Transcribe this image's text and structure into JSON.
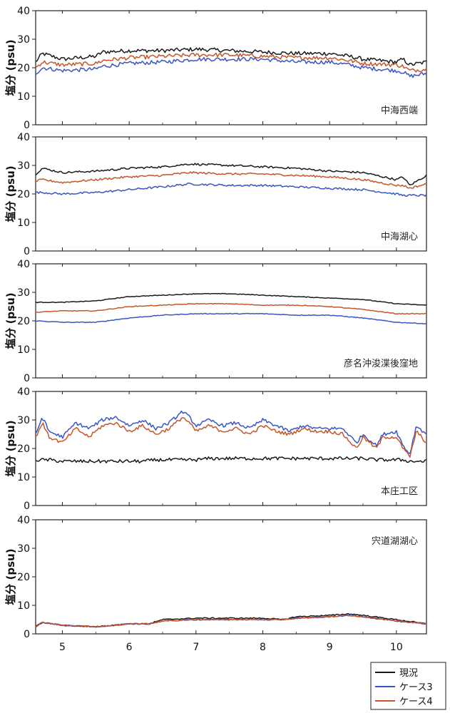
{
  "chart_data": {
    "type": "line",
    "x_ticks": [
      "5",
      "6",
      "7",
      "8",
      "9",
      "10"
    ],
    "xlim": [
      4.6,
      10.45
    ],
    "ylabel": "塩分 (psu)",
    "legend": {
      "placement": "bottom-right",
      "entries": [
        {
          "name": "現況",
          "color": "#1a1a1a"
        },
        {
          "name": "ケース3",
          "color": "#3a55c4"
        },
        {
          "name": "ケース4",
          "color": "#c8552a"
        }
      ]
    },
    "panels": [
      {
        "label": "中海西端",
        "ylim": [
          0,
          40
        ],
        "yticks": [
          0,
          10,
          20,
          30,
          40
        ],
        "x": [
          4.6,
          4.7,
          5.0,
          5.5,
          5.6,
          6.0,
          6.5,
          7.0,
          7.5,
          8.0,
          8.5,
          9.0,
          9.3,
          9.5,
          10.0,
          10.1,
          10.2,
          10.45
        ],
        "series": [
          {
            "name": "現況",
            "values": [
              22,
              25,
              23,
              24,
              25.5,
              26,
              26,
              26.5,
              26,
              25.5,
              25,
              25,
              24,
              23,
              22,
              23,
              21,
              22
            ]
          },
          {
            "name": "ケース3",
            "values": [
              18,
              20,
              19,
              19.5,
              20.5,
              21.5,
              22,
              23,
              23,
              23,
              22,
              22,
              21,
              20,
              19,
              18.5,
              17,
              18
            ]
          },
          {
            "name": "ケース4",
            "values": [
              20,
              22,
              21,
              21.5,
              22.5,
              23.5,
              24,
              24.5,
              24.5,
              24,
              23.5,
              23.5,
              22.5,
              21.5,
              21,
              20.5,
              19,
              19.5
            ]
          }
        ]
      },
      {
        "label": "中海湖心",
        "ylim": [
          0,
          40
        ],
        "yticks": [
          0,
          10,
          20,
          30,
          40
        ],
        "x": [
          4.6,
          4.7,
          5.0,
          5.5,
          6.0,
          6.5,
          6.9,
          7.5,
          8.0,
          8.5,
          9.0,
          9.5,
          10.0,
          10.1,
          10.2,
          10.45
        ],
        "series": [
          {
            "name": "現況",
            "values": [
              27,
              29,
              27.5,
              28,
              29,
              29.5,
              30.5,
              30,
              29.5,
              29,
              28,
              27.5,
              25,
              26,
              23,
              26.5
            ]
          },
          {
            "name": "ケース3",
            "values": [
              20.5,
              20.5,
              20,
              20.5,
              21.5,
              22.5,
              23.5,
              23,
              23,
              22.5,
              22,
              21.5,
              20,
              19.5,
              19.5,
              19.5
            ]
          },
          {
            "name": "ケース4",
            "values": [
              24.5,
              25,
              24,
              25,
              26,
              26.5,
              27.5,
              27,
              27,
              26.5,
              26,
              25,
              23,
              23,
              22,
              23.5
            ]
          }
        ]
      },
      {
        "label": "彦名沖浚渫後窪地",
        "ylim": [
          0,
          40
        ],
        "yticks": [
          0,
          10,
          20,
          30,
          40
        ],
        "x": [
          4.6,
          5.0,
          5.5,
          6.0,
          6.5,
          7.0,
          7.5,
          8.0,
          8.5,
          9.0,
          9.5,
          10.0,
          10.45
        ],
        "series": [
          {
            "name": "現況",
            "values": [
              26.5,
              26.5,
              27,
              28.5,
              29,
              29.5,
              29.5,
              29,
              28.5,
              28,
              27.5,
              26,
              25.5
            ]
          },
          {
            "name": "ケース3",
            "values": [
              20,
              19.5,
              19.5,
              21,
              22,
              22.5,
              22.5,
              22.5,
              22,
              22,
              21,
              19.5,
              19
            ]
          },
          {
            "name": "ケース4",
            "values": [
              23,
              23.5,
              23.5,
              25,
              25.5,
              26,
              26,
              25.5,
              25.5,
              25,
              24,
              22.5,
              22.5
            ]
          }
        ]
      },
      {
        "label": "本庄工区",
        "ylim": [
          0,
          40
        ],
        "yticks": [
          0,
          10,
          20,
          30,
          40
        ],
        "x": [
          4.6,
          4.7,
          4.8,
          5.0,
          5.2,
          5.4,
          5.6,
          5.8,
          6.0,
          6.2,
          6.4,
          6.6,
          6.8,
          6.9,
          7.0,
          7.2,
          7.4,
          7.6,
          7.8,
          8.0,
          8.2,
          8.4,
          8.6,
          8.8,
          9.0,
          9.2,
          9.4,
          9.5,
          9.7,
          9.8,
          10.0,
          10.1,
          10.2,
          10.3,
          10.45
        ],
        "series": [
          {
            "name": "現況",
            "values": [
              16,
              16,
              16,
              15.5,
              15.5,
              15.5,
              15.5,
              15.5,
              15.5,
              15.5,
              16,
              16,
              16,
              16,
              16,
              16.5,
              16.5,
              16.5,
              16.5,
              16.5,
              16.5,
              16.5,
              16.5,
              16.5,
              16.5,
              16.5,
              16.5,
              16.5,
              16,
              16,
              16,
              16,
              15.5,
              15.5,
              15.5
            ]
          },
          {
            "name": "ケース3",
            "values": [
              25,
              31,
              26,
              24,
              29,
              27,
              30,
              31,
              28,
              30,
              27,
              29,
              33,
              31,
              28,
              30,
              28,
              29,
              27,
              30,
              28,
              26,
              28,
              27,
              27,
              27,
              22,
              25,
              21,
              25,
              26,
              21,
              18,
              28,
              25
            ]
          },
          {
            "name": "ケース4",
            "values": [
              24,
              29,
              24,
              22,
              27,
              24,
              28,
              29,
              26,
              28,
              25,
              27,
              31,
              29,
              26,
              28,
              26,
              27,
              25,
              28,
              26,
              25,
              27,
              26,
              26,
              25,
              20,
              24,
              20,
              24,
              24,
              20,
              17,
              26,
              22
            ]
          }
        ]
      },
      {
        "label": "宍道湖湖心",
        "ylim": [
          0,
          40
        ],
        "yticks": [
          0,
          10,
          20,
          30,
          40
        ],
        "x": [
          4.6,
          4.7,
          5.0,
          5.5,
          6.0,
          6.3,
          6.5,
          7.0,
          7.5,
          8.0,
          8.3,
          8.5,
          9.0,
          9.3,
          9.5,
          10.0,
          10.45
        ],
        "series": [
          {
            "name": "現況",
            "values": [
              2.5,
              4,
              3,
              2.5,
              3.5,
              3.5,
              5,
              5.5,
              5.5,
              5.5,
              5,
              6,
              6.5,
              7,
              6.5,
              5,
              3.5
            ]
          },
          {
            "name": "ケース3",
            "values": [
              2.5,
              4,
              3,
              2.5,
              3.5,
              3.5,
              4.5,
              5,
              5,
              5,
              5,
              5.5,
              6,
              6.5,
              6,
              4.5,
              3.5
            ]
          },
          {
            "name": "ケース4",
            "values": [
              2.5,
              4,
              3,
              2.5,
              3.5,
              3.5,
              4.5,
              5,
              5,
              5,
              5,
              5.5,
              6,
              6.5,
              6,
              4.5,
              3.5
            ]
          }
        ]
      }
    ]
  }
}
